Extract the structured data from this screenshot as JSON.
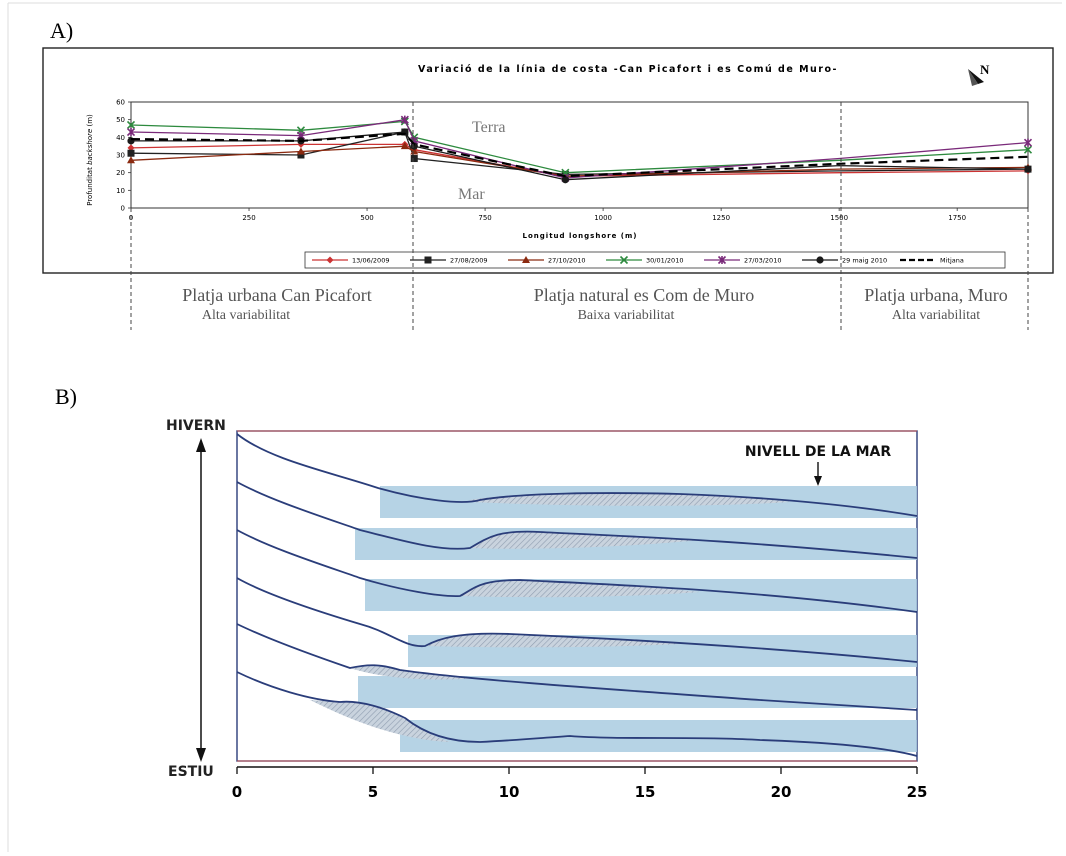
{
  "panel_a": {
    "label": "A)",
    "title": "Variació de la línia de costa -Can Picafort i es Comú de Muro-",
    "north": "N",
    "ylabel_prefix": "Profunditat ",
    "ylabel_italic": "backshore",
    "ylabel_suffix": " (m)",
    "xlabel": "Longitud longshore (m)",
    "terra_label": "Terra",
    "mar_label": "Mar",
    "sections": [
      {
        "name": "Platja urbana Can Picafort",
        "note": "Alta variabilitat"
      },
      {
        "name": "Platja natural es Com  de Muro",
        "note": "Baixa variabilitat"
      },
      {
        "name": "Platja urbana, Muro",
        "note": "Alta variabilitat"
      }
    ]
  },
  "panel_b": {
    "label": "B)",
    "top_label": "HIVERN",
    "bottom_label": "ESTIU",
    "sea_level_label": "NIVELL DE LA MAR"
  },
  "chart_data": [
    {
      "type": "line",
      "title": "Variació de la línia de costa -Can Picafort i es Comú de Muro-",
      "xlabel": "Longitud longshore (m)",
      "ylabel": "Profunditat backshore (m)",
      "xlim": [
        0,
        1900
      ],
      "ylim": [
        0,
        60
      ],
      "xticks": [
        0,
        250,
        500,
        750,
        1000,
        1250,
        1500,
        1750
      ],
      "yticks": [
        0,
        10,
        20,
        30,
        40,
        50,
        60
      ],
      "x": [
        0,
        360,
        580,
        600,
        920,
        1500,
        1900
      ],
      "legend_position": "bottom",
      "section_boundaries": [
        600,
        1520
      ],
      "series": [
        {
          "name": "13/06/2009",
          "color": "#cc3333",
          "marker": "diamond",
          "values": [
            34,
            36,
            36,
            33,
            18,
            20,
            21
          ]
        },
        {
          "name": "27/08/2009",
          "color": "#222222",
          "marker": "square",
          "values": [
            31,
            30,
            43,
            28,
            19,
            21,
            22
          ]
        },
        {
          "name": "27/10/2010",
          "color": "#8b2a10",
          "marker": "triangle",
          "values": [
            27,
            32,
            35,
            32,
            18,
            22,
            23
          ]
        },
        {
          "name": "30/01/2010",
          "color": "#2d8a3e",
          "marker": "x",
          "values": [
            47,
            44,
            49,
            40,
            20,
            27,
            33
          ]
        },
        {
          "name": "27/03/2010",
          "color": "#7a2a7a",
          "marker": "star",
          "values": [
            43,
            41,
            50,
            38,
            17,
            28,
            37
          ]
        },
        {
          "name": "29 maig 2010",
          "color": "#1a1a1a",
          "marker": "circle",
          "values": [
            38,
            38,
            43,
            35,
            16,
            24,
            22
          ]
        },
        {
          "name": "Mitjana",
          "color": "#000000",
          "marker": "none",
          "dashed": true,
          "values": [
            39,
            38,
            42,
            36,
            18,
            25,
            29
          ]
        }
      ]
    },
    {
      "type": "line",
      "title": "",
      "xlim": [
        0,
        25
      ],
      "xticks": [
        0,
        5,
        10,
        15,
        20,
        25
      ],
      "top_label": "HIVERN",
      "bottom_label": "ESTIU",
      "annotation": "NIVELL DE LA MAR",
      "sea_level_x": [
        [
          5,
          25
        ],
        [
          4.5,
          25
        ],
        [
          4,
          25
        ],
        [
          4,
          25
        ],
        [
          4,
          25
        ],
        [
          5,
          25
        ]
      ]
    }
  ]
}
